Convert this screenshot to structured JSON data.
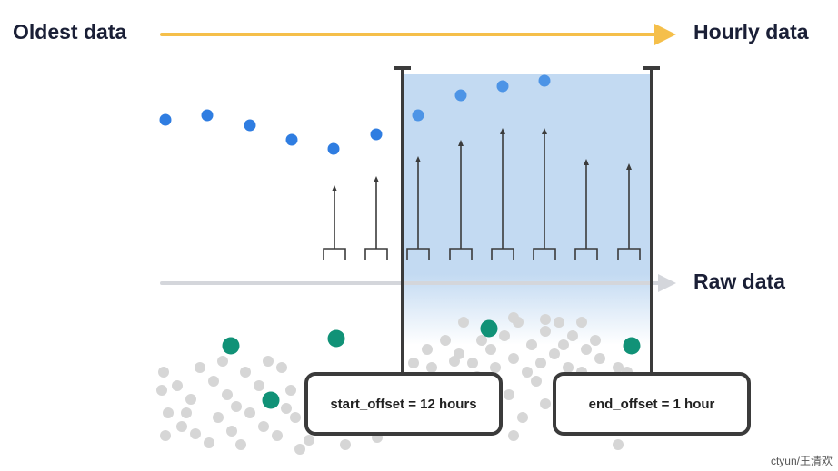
{
  "labels": {
    "oldest": "Oldest data",
    "hourly": "Hourly data",
    "raw": "Raw data"
  },
  "offsets": {
    "start": "start_offset = 12 hours",
    "end": "end_offset = 1 hour"
  },
  "watermark": "ctyun/王清欢",
  "colors": {
    "top_arrow": "#f5bf4a",
    "raw_arrow": "#d4d6db",
    "window_fill": "#c3daf2",
    "hourly_point": "#2f7de1",
    "hourly_point_in_window": "#4d94e6",
    "raw_point": "#d6d6d6",
    "highlight_point": "#119277",
    "bracket": "#3b3b3b",
    "text": "#1a1f36"
  }
}
